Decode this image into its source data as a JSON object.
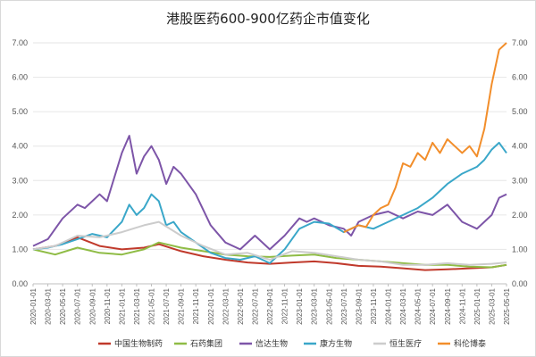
{
  "chart_data": {
    "type": "line",
    "title": "港股医药600-900亿药企市值变化",
    "xlabel": "",
    "ylabel": "",
    "ylim": [
      0,
      7
    ],
    "y_ticks": [
      "0.00",
      "1.00",
      "2.00",
      "3.00",
      "4.00",
      "5.00",
      "6.00",
      "7.00"
    ],
    "x_ticks": [
      "2020-01",
      "2020-03",
      "2020-05",
      "2020-07",
      "2020-09",
      "2020-11",
      "2021-01",
      "2021-03",
      "2021-05",
      "2021-07",
      "2021-09",
      "2021-11",
      "2022-01",
      "2022-03",
      "2022-05",
      "2022-07",
      "2022-09",
      "2022-11",
      "2023-01",
      "2023-03",
      "2023-05",
      "2023-07",
      "2023-09",
      "2023-11",
      "2024-01",
      "2024-03",
      "2024-05",
      "2024-07",
      "2024-09",
      "2024-11",
      "2025-01",
      "2025-03",
      "2025-05"
    ],
    "grid": true,
    "legend_position": "bottom",
    "dual_y_axis": true,
    "series": [
      {
        "name": "中国生物制药",
        "color": "#c0392b",
        "x": [
          "2020-01",
          "2020-04",
          "2020-07",
          "2020-10",
          "2021-01",
          "2021-04",
          "2021-06",
          "2021-09",
          "2021-12",
          "2022-03",
          "2022-06",
          "2022-09",
          "2022-12",
          "2023-03",
          "2023-06",
          "2023-09",
          "2023-12",
          "2024-03",
          "2024-06",
          "2024-09",
          "2024-12",
          "2025-03",
          "2025-05"
        ],
        "y": [
          1.0,
          1.1,
          1.35,
          1.1,
          1.0,
          1.05,
          1.15,
          0.95,
          0.8,
          0.7,
          0.62,
          0.58,
          0.62,
          0.65,
          0.6,
          0.52,
          0.5,
          0.45,
          0.4,
          0.42,
          0.45,
          0.48,
          0.55
        ]
      },
      {
        "name": "石药集团",
        "color": "#8fbc45",
        "x": [
          "2020-01",
          "2020-04",
          "2020-07",
          "2020-10",
          "2021-01",
          "2021-04",
          "2021-06",
          "2021-09",
          "2021-12",
          "2022-03",
          "2022-06",
          "2022-09",
          "2022-12",
          "2023-03",
          "2023-06",
          "2023-09",
          "2023-12",
          "2024-03",
          "2024-06",
          "2024-09",
          "2024-12",
          "2025-03",
          "2025-05"
        ],
        "y": [
          1.0,
          0.85,
          1.05,
          0.9,
          0.85,
          1.0,
          1.2,
          1.05,
          0.95,
          0.85,
          0.8,
          0.78,
          0.82,
          0.85,
          0.75,
          0.7,
          0.65,
          0.6,
          0.55,
          0.55,
          0.5,
          0.48,
          0.55
        ]
      },
      {
        "name": "信达生物",
        "color": "#7d55a8",
        "x": [
          "2020-01",
          "2020-03",
          "2020-05",
          "2020-07",
          "2020-08",
          "2020-10",
          "2020-11",
          "2021-01",
          "2021-02",
          "2021-03",
          "2021-04",
          "2021-05",
          "2021-06",
          "2021-07",
          "2021-08",
          "2021-09",
          "2021-11",
          "2022-01",
          "2022-03",
          "2022-05",
          "2022-07",
          "2022-09",
          "2022-11",
          "2023-01",
          "2023-02",
          "2023-03",
          "2023-05",
          "2023-07",
          "2023-08",
          "2023-09",
          "2023-11",
          "2024-01",
          "2024-03",
          "2024-05",
          "2024-07",
          "2024-09",
          "2024-11",
          "2025-01",
          "2025-03",
          "2025-04",
          "2025-05"
        ],
        "y": [
          1.1,
          1.3,
          1.9,
          2.3,
          2.2,
          2.6,
          2.4,
          3.8,
          4.3,
          3.2,
          3.7,
          4.0,
          3.6,
          2.9,
          3.4,
          3.2,
          2.6,
          1.7,
          1.2,
          1.0,
          1.4,
          1.0,
          1.4,
          1.9,
          1.8,
          1.9,
          1.7,
          1.6,
          1.4,
          1.8,
          2.0,
          2.1,
          1.9,
          2.1,
          2.0,
          2.3,
          1.8,
          1.6,
          2.0,
          2.5,
          2.6
        ]
      },
      {
        "name": "康方生物",
        "color": "#3aa7c9",
        "x": [
          "2020-01",
          "2020-03",
          "2020-05",
          "2020-07",
          "2020-09",
          "2020-11",
          "2021-01",
          "2021-02",
          "2021-03",
          "2021-04",
          "2021-05",
          "2021-06",
          "2021-07",
          "2021-08",
          "2021-09",
          "2021-11",
          "2022-01",
          "2022-03",
          "2022-05",
          "2022-07",
          "2022-09",
          "2022-11",
          "2023-01",
          "2023-03",
          "2023-05",
          "2023-07",
          "2023-09",
          "2023-11",
          "2024-01",
          "2024-03",
          "2024-05",
          "2024-07",
          "2024-09",
          "2024-11",
          "2025-01",
          "2025-02",
          "2025-03",
          "2025-04",
          "2025-05"
        ],
        "y": [
          1.0,
          1.05,
          1.15,
          1.3,
          1.45,
          1.35,
          1.8,
          2.3,
          2.0,
          2.2,
          2.6,
          2.4,
          1.7,
          1.8,
          1.5,
          1.2,
          0.9,
          0.75,
          0.7,
          0.8,
          0.6,
          1.0,
          1.6,
          1.8,
          1.75,
          1.5,
          1.7,
          1.6,
          1.8,
          2.0,
          2.2,
          2.5,
          2.9,
          3.2,
          3.4,
          3.6,
          3.9,
          4.1,
          3.8
        ]
      },
      {
        "name": "恒生医疗",
        "color": "#cccccc",
        "x": [
          "2020-01",
          "2020-04",
          "2020-07",
          "2020-10",
          "2021-01",
          "2021-04",
          "2021-06",
          "2021-09",
          "2021-12",
          "2022-03",
          "2022-06",
          "2022-09",
          "2022-12",
          "2023-03",
          "2023-06",
          "2023-09",
          "2023-12",
          "2024-03",
          "2024-06",
          "2024-09",
          "2024-12",
          "2025-03",
          "2025-05"
        ],
        "y": [
          1.0,
          1.1,
          1.4,
          1.35,
          1.5,
          1.7,
          1.8,
          1.4,
          1.1,
          0.85,
          0.9,
          0.7,
          0.95,
          0.9,
          0.8,
          0.7,
          0.65,
          0.55,
          0.55,
          0.6,
          0.55,
          0.58,
          0.62
        ]
      },
      {
        "name": "科伦博泰",
        "color": "#f28e2b",
        "x": [
          "2023-07",
          "2023-08",
          "2023-09",
          "2023-10",
          "2023-11",
          "2023-12",
          "2024-01",
          "2024-02",
          "2024-03",
          "2024-04",
          "2024-05",
          "2024-06",
          "2024-07",
          "2024-08",
          "2024-09",
          "2024-10",
          "2024-11",
          "2024-12",
          "2025-01",
          "2025-02",
          "2025-03",
          "2025-04",
          "2025-05"
        ],
        "y": [
          1.5,
          1.6,
          1.7,
          1.65,
          2.0,
          2.2,
          2.3,
          2.8,
          3.5,
          3.4,
          3.8,
          3.6,
          4.1,
          3.8,
          4.2,
          4.0,
          3.8,
          4.0,
          3.7,
          4.5,
          5.8,
          6.8,
          7.0
        ]
      }
    ]
  }
}
